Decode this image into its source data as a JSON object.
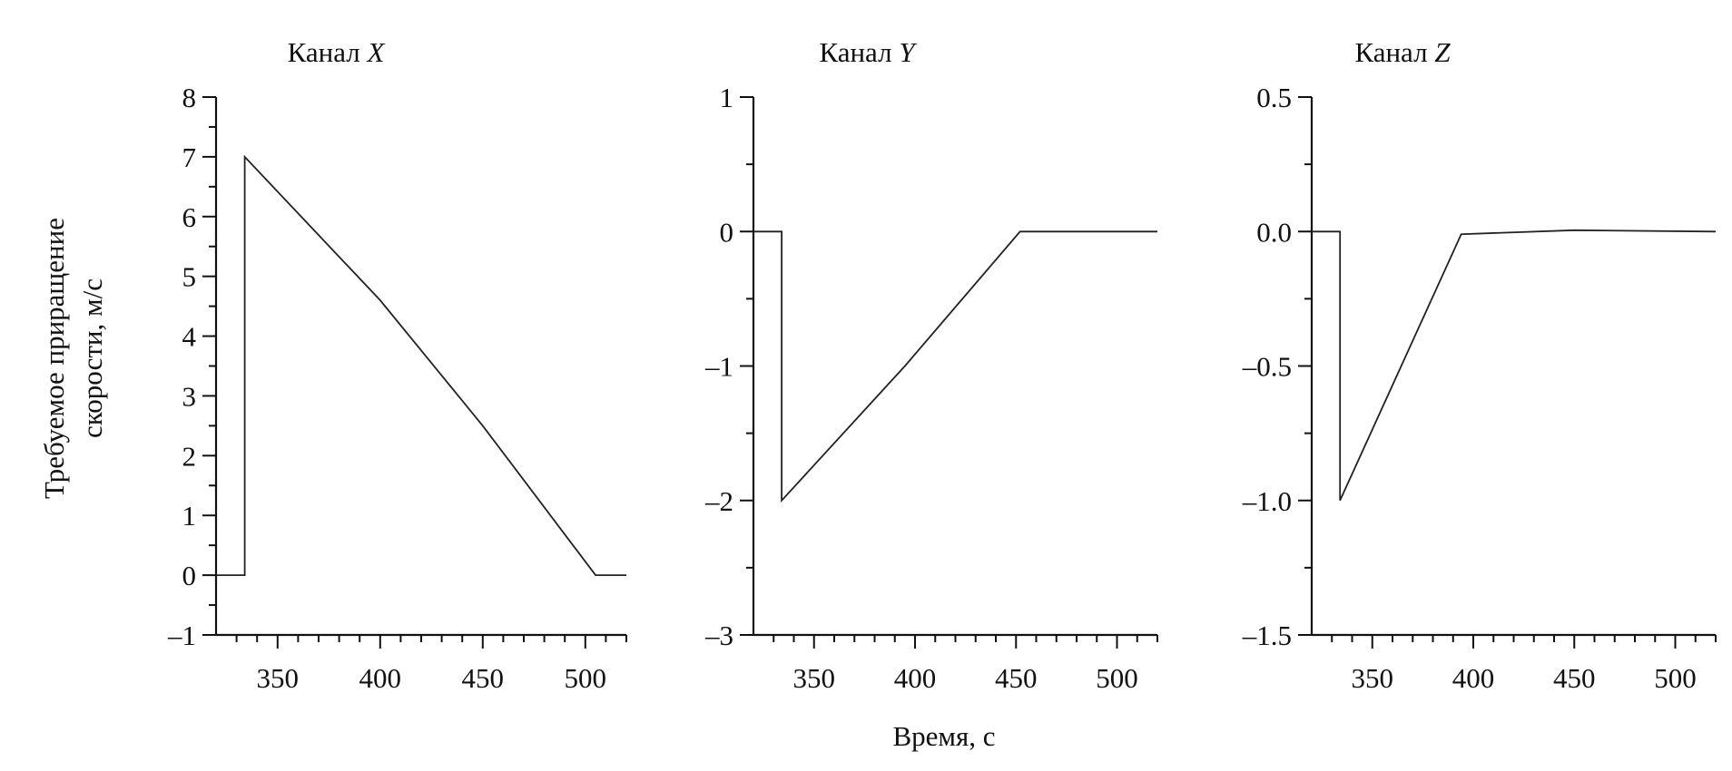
{
  "figure": {
    "ylabel_line1": "Требуемое приращение",
    "ylabel_line2": "скорости, м/с",
    "xlabel": "Время, с"
  },
  "chart_data": [
    {
      "type": "line",
      "title_prefix": "Канал ",
      "title_axis": "X",
      "xlim": [
        320,
        520
      ],
      "ylim": [
        -1,
        8
      ],
      "x_ticks": [
        350,
        400,
        450,
        500
      ],
      "x_tick_labels": [
        "350",
        "400",
        "450",
        "500"
      ],
      "x_minor_step": 10,
      "y_ticks": [
        -1,
        0,
        1,
        2,
        3,
        4,
        5,
        6,
        7,
        8
      ],
      "y_tick_labels": [
        "–1",
        "0",
        "1",
        "2",
        "3",
        "4",
        "5",
        "6",
        "7",
        "8"
      ],
      "y_minor_step": 0.5,
      "series": [
        {
          "x": [
            320,
            334,
            334,
            400,
            450,
            505,
            520
          ],
          "y": [
            0,
            0,
            7,
            4.6,
            2.5,
            0,
            0
          ]
        }
      ]
    },
    {
      "type": "line",
      "title_prefix": "Канал ",
      "title_axis": "Y",
      "xlim": [
        320,
        520
      ],
      "ylim": [
        -3,
        1
      ],
      "x_ticks": [
        350,
        400,
        450,
        500
      ],
      "x_tick_labels": [
        "350",
        "400",
        "450",
        "500"
      ],
      "x_minor_step": 10,
      "y_ticks": [
        -3,
        -2,
        -1,
        0,
        1
      ],
      "y_tick_labels": [
        "–3",
        "–2",
        "–1",
        "0",
        "1"
      ],
      "y_minor_step": 0.5,
      "series": [
        {
          "x": [
            320,
            334,
            334,
            395,
            452,
            520
          ],
          "y": [
            0,
            0,
            -2,
            -1,
            0,
            0
          ]
        }
      ]
    },
    {
      "type": "line",
      "title_prefix": "Канал ",
      "title_axis": "Z",
      "xlim": [
        320,
        520
      ],
      "ylim": [
        -1.5,
        0.5
      ],
      "x_ticks": [
        350,
        400,
        450,
        500
      ],
      "x_tick_labels": [
        "350",
        "400",
        "450",
        "500"
      ],
      "x_minor_step": 10,
      "y_ticks": [
        -1.5,
        -1.0,
        -0.5,
        0.0,
        0.5
      ],
      "y_tick_labels": [
        "–1.5",
        "–1.0",
        "–0.5",
        "0.0",
        "0.5"
      ],
      "y_minor_step": 0.25,
      "series": [
        {
          "x": [
            320,
            334,
            334,
            394,
            450,
            520
          ],
          "y": [
            0,
            0,
            -1.0,
            -0.01,
            0.005,
            0.0
          ]
        }
      ]
    }
  ]
}
